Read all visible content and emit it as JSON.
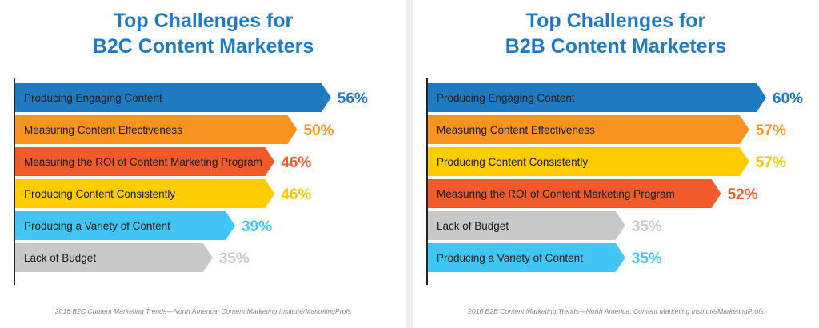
{
  "chart_data": [
    {
      "type": "bar",
      "orientation": "horizontal",
      "title": [
        "Top Challenges for",
        "B2C Content Marketers"
      ],
      "categories": [
        "Producing Engaging Content",
        "Measuring Content Effectiveness",
        "Measuring the ROI of Content Marketing Program",
        "Producing Content Consistently",
        "Producing a Variety of Content",
        "Lack of Budget"
      ],
      "values": [
        56,
        50,
        46,
        46,
        39,
        35
      ],
      "value_labels": [
        "56%",
        "50%",
        "46%",
        "46%",
        "39%",
        "35%"
      ],
      "colors": [
        "#1f7bc1",
        "#f7931e",
        "#f15a29",
        "#ffcc00",
        "#3fc6f4",
        "#c8c8c8"
      ],
      "source": "2016 B2C Content Marketing Trends—North America: Content Marketing Institute/MarketingProfs"
    },
    {
      "type": "bar",
      "orientation": "horizontal",
      "title": [
        "Top Challenges for",
        "B2B Content Marketers"
      ],
      "categories": [
        "Producing Engaging Content",
        "Measuring Content Effectiveness",
        "Producing Content Consistently",
        "Measuring the ROI of Content Marketing Program",
        "Lack of Budget",
        "Producing a Variety of Content"
      ],
      "values": [
        60,
        57,
        57,
        52,
        35,
        35
      ],
      "value_labels": [
        "60%",
        "57%",
        "57%",
        "52%",
        "35%",
        "35%"
      ],
      "colors": [
        "#1f7bc1",
        "#f7931e",
        "#ffcc00",
        "#f15a29",
        "#c8c8c8",
        "#3fc6f4"
      ],
      "source": "2016 B2B Content Marketing Trends—North America: Content Marketing Institute/MarketingProfs"
    }
  ]
}
